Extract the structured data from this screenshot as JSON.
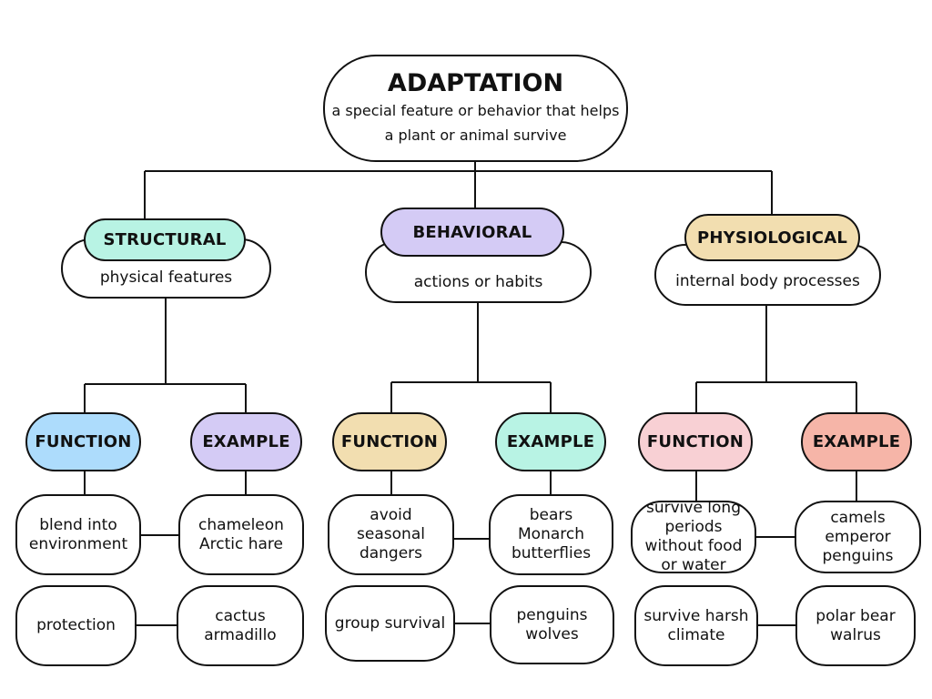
{
  "root": {
    "title": "ADAPTATION",
    "description": "a special feature or behavior that helps a plant or animal survive",
    "color": "#c5e6fb"
  },
  "categories": [
    {
      "label": "STRUCTURAL",
      "description": "physical features",
      "color": "#b8f3e4",
      "function_label": "FUNCTION",
      "function_color": "#addcfc",
      "example_label": "EXAMPLE",
      "example_color": "#d4cbf5",
      "rows": [
        {
          "function": "blend into environment",
          "example": "chameleon Arctic hare"
        },
        {
          "function": "protection",
          "example": "cactus armadillo"
        }
      ]
    },
    {
      "label": "BEHAVIORAL",
      "description": "actions or habits",
      "color": "#d4cbf5",
      "function_label": "FUNCTION",
      "function_color": "#f2deb0",
      "example_label": "EXAMPLE",
      "example_color": "#b8f3e4",
      "rows": [
        {
          "function": "avoid seasonal dangers",
          "example": "bears Monarch butterflies"
        },
        {
          "function": "group survival",
          "example": "penguins wolves"
        }
      ]
    },
    {
      "label": "PHYSIOLOGICAL",
      "description": "internal body processes",
      "color": "#f2deb0",
      "function_label": "FUNCTION",
      "function_color": "#f8d0d4",
      "example_label": "EXAMPLE",
      "example_color": "#f6b5a8",
      "rows": [
        {
          "function": "survive long periods without food or water",
          "example": "camels emperor penguins"
        },
        {
          "function": "survive harsh climate",
          "example": "polar bear walrus"
        }
      ]
    }
  ]
}
